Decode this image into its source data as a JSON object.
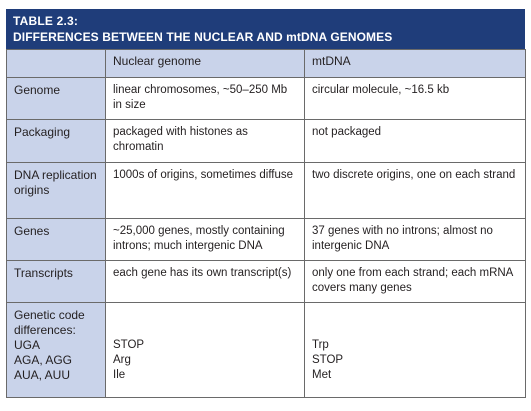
{
  "table": {
    "number": "TABLE 2.3:",
    "title": "DIFFERENCES BETWEEN THE NUCLEAR AND mtDNA GENOMES",
    "columns": [
      "",
      "Nuclear genome",
      "mtDNA"
    ],
    "rows": [
      {
        "label": "Genome",
        "nuclear": "linear chromosomes, ~50–250 Mb in size",
        "mtdna": "circular molecule, ~16.5 kb"
      },
      {
        "label": "Packaging",
        "nuclear": "packaged with histones as chromatin",
        "mtdna": "not packaged"
      },
      {
        "label": "DNA replication origins",
        "nuclear": "1000s of origins, sometimes diffuse",
        "mtdna": "two discrete origins, one on each strand"
      },
      {
        "label": "Genes",
        "nuclear": "~25,000 genes, mostly containing introns; much intergenic DNA",
        "mtdna": "37 genes with no introns; almost no intergenic DNA"
      },
      {
        "label": "Transcripts",
        "nuclear": "each gene has its own transcript(s)",
        "mtdna": "only one from each strand; each mRNA covers many genes"
      }
    ],
    "genetic_code": {
      "label": "Genetic code differences:",
      "codons": [
        "UGA",
        "AGA, AGG",
        "AUA, AUU"
      ],
      "nuclear": [
        "STOP",
        "Arg",
        "Ile"
      ],
      "mtdna": [
        "Trp",
        "STOP",
        "Met"
      ]
    }
  }
}
